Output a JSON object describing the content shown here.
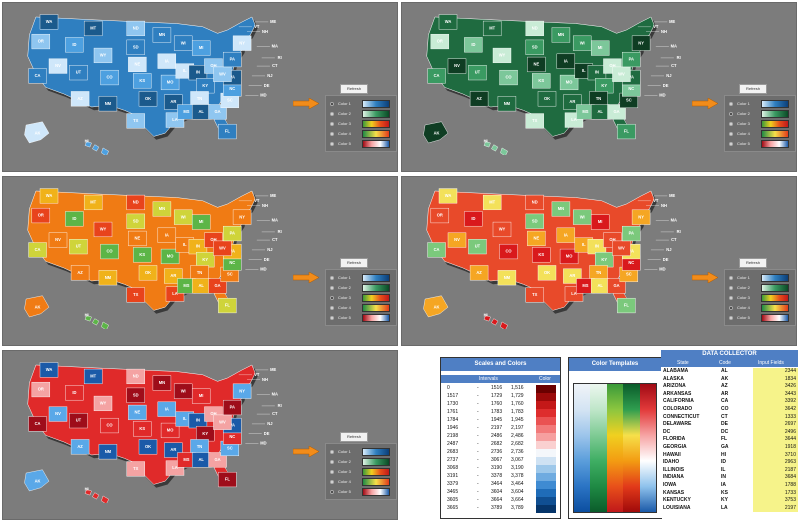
{
  "maps": [
    {
      "id": "blue",
      "fills": [
        "#1b5a8c",
        "#2f7fc0",
        "#4da0e0",
        "#8fc6f0",
        "#cfe7fa"
      ]
    },
    {
      "id": "green",
      "fills": [
        "#0f3d23",
        "#1f6b40",
        "#3a9a62",
        "#7cc79a",
        "#c9ecd6"
      ]
    },
    {
      "id": "heat",
      "fills": [
        "#e8431c",
        "#f07b14",
        "#f0b21a",
        "#cfd43a",
        "#5cb547"
      ]
    },
    {
      "id": "ryg",
      "fills": [
        "#d9191c",
        "#e84a2a",
        "#f5a623",
        "#f3e15a",
        "#7bc97c"
      ]
    },
    {
      "id": "rwb",
      "fills": [
        "#9e0d1a",
        "#e02a2a",
        "#f4a3a3",
        "#5aa8e8",
        "#1b5aa8"
      ]
    }
  ],
  "state_labels": [
    "WA",
    "OR",
    "CA",
    "NV",
    "ID",
    "MT",
    "WY",
    "UT",
    "AZ",
    "CO",
    "NM",
    "ND",
    "SD",
    "NE",
    "KS",
    "OK",
    "TX",
    "MN",
    "IA",
    "MO",
    "AR",
    "LA",
    "WI",
    "IL",
    "MI",
    "IN",
    "OH",
    "KY",
    "TN",
    "MS",
    "AL",
    "GA",
    "FL",
    "SC",
    "NC",
    "VA",
    "WV",
    "PA",
    "NY",
    "VT",
    "NH",
    "ME",
    "MA",
    "RI",
    "CT",
    "NJ",
    "DE",
    "MD",
    "AK",
    "HI"
  ],
  "refresh_label": "Refresh",
  "color_options": [
    "Color 1",
    "Color 2",
    "Color 3",
    "Color 4",
    "Color 5"
  ],
  "scales": {
    "title": "Scales and Colors",
    "intervals_header": "Intervals",
    "color_header": "Color",
    "rows": [
      [
        "0",
        "-",
        "1516",
        "1,516"
      ],
      [
        "1517",
        "-",
        "1729",
        "1,729"
      ],
      [
        "1730",
        "-",
        "1760",
        "1,760"
      ],
      [
        "1761",
        "-",
        "1783",
        "1,783"
      ],
      [
        "1784",
        "-",
        "1945",
        "1,945"
      ],
      [
        "1946",
        "-",
        "2197",
        "2,197"
      ],
      [
        "2198",
        "-",
        "2486",
        "2,486"
      ],
      [
        "2487",
        "-",
        "2682",
        "2,682"
      ],
      [
        "2683",
        "-",
        "2736",
        "2,736"
      ],
      [
        "2737",
        "-",
        "3067",
        "3,067"
      ],
      [
        "3068",
        "-",
        "3190",
        "3,190"
      ],
      [
        "3191",
        "-",
        "3378",
        "3,378"
      ],
      [
        "3379",
        "-",
        "3464",
        "3,464"
      ],
      [
        "3465",
        "-",
        "3604",
        "3,604"
      ],
      [
        "3605",
        "-",
        "3664",
        "3,664"
      ],
      [
        "3665",
        "-",
        "3789",
        "3,789"
      ]
    ],
    "colors": [
      "#6a0000",
      "#9b0a0a",
      "#c41818",
      "#de2d2d",
      "#ea5252",
      "#f27a7a",
      "#f6a0a0",
      "#fad0d0",
      "#f4f7fb",
      "#cfe2f3",
      "#9ec8ea",
      "#6fabe0",
      "#3f8bd2",
      "#1f6cb8",
      "#104f92",
      "#06356a"
    ]
  },
  "templates": {
    "title": "Color Templates",
    "columns": [
      [
        "#f0f4f8",
        "#d4e4f3",
        "#9dc5eb",
        "#5b9edb",
        "#2b74c4",
        "#0c4ea0"
      ],
      [
        "#ecf7ef",
        "#bfe6c9",
        "#7fcb95",
        "#3fae63",
        "#1f8a44",
        "#0b5c2b"
      ],
      [
        "#3a9a3a",
        "#8cc63f",
        "#f0d020",
        "#f39c12",
        "#e8501a",
        "#c0181a"
      ],
      [
        "#0b5c2b",
        "#2f9e4f",
        "#f6e04a",
        "#f39c12",
        "#e23a1a",
        "#a00a0a"
      ],
      [
        "#a00a14",
        "#e23a3a",
        "#f6a3a3",
        "#ffffff",
        "#8fc2ec",
        "#1b5aa8"
      ]
    ]
  },
  "collector": {
    "title": "DATA COLLECTOR",
    "headers": [
      "State",
      "Code",
      "Input Fields"
    ],
    "rows": [
      [
        "ALABAMA",
        "AL",
        "2344"
      ],
      [
        "ALASKA",
        "AK",
        "1834"
      ],
      [
        "ARIZONA",
        "AZ",
        "3426"
      ],
      [
        "ARKANSAS",
        "AR",
        "3443"
      ],
      [
        "CALIFORNIA",
        "CA",
        "3392"
      ],
      [
        "COLORADO",
        "CO",
        "3642"
      ],
      [
        "CONNECTICUT",
        "CT",
        "1333"
      ],
      [
        "DELAWARE",
        "DE",
        "2697"
      ],
      [
        "DC",
        "DC",
        "2496"
      ],
      [
        "FLORIDA",
        "FL",
        "3644"
      ],
      [
        "GEORGIA",
        "GA",
        "1918"
      ],
      [
        "HAWAII",
        "HI",
        "3710"
      ],
      [
        "IDAHO",
        "ID",
        "2963"
      ],
      [
        "ILLINOIS",
        "IL",
        "2187"
      ],
      [
        "INDIANA",
        "IN",
        "3684"
      ],
      [
        "IOWA",
        "IA",
        "1788"
      ],
      [
        "KANSAS",
        "KS",
        "1733"
      ],
      [
        "KENTUCKY",
        "KY",
        "3753"
      ],
      [
        "LOUISIANA",
        "LA",
        "2197"
      ]
    ]
  }
}
